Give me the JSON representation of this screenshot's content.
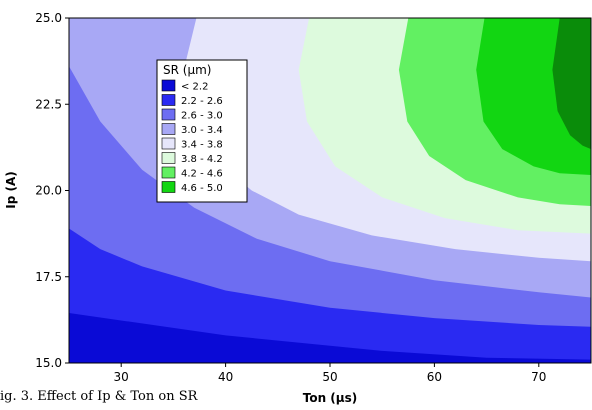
{
  "caption": "ig. 3.    Effect of Ip & Ton on SR",
  "chart_data": {
    "type": "contour",
    "xlabel": "Ton (µs)",
    "ylabel": "Ip (A)",
    "xlim": [
      25,
      75
    ],
    "ylim": [
      15,
      25
    ],
    "xticks": [
      "30",
      "40",
      "50",
      "60",
      "70"
    ],
    "yticks": [
      "15.0",
      "17.5",
      "20.0",
      "22.5",
      "25.0"
    ],
    "z_variable": "SR",
    "legend": {
      "title": "SR (µm)",
      "placement": "upper-left inside plot",
      "entries": [
        {
          "label": "< 2.2",
          "color": "#0a0ad6"
        },
        {
          "label": "2.2 - 2.6",
          "color": "#2a2af2"
        },
        {
          "label": "2.6 - 3.0",
          "color": "#6d6df2"
        },
        {
          "label": "3.0 - 3.4",
          "color": "#a8a8f5"
        },
        {
          "label": "3.4 - 3.8",
          "color": "#e6e6fb"
        },
        {
          "label": "3.8 - 4.2",
          "color": "#ddfadd"
        },
        {
          "label": "4.2 - 4.6",
          "color": "#62f062"
        },
        {
          "label": "4.6 - 5.0",
          "color": "#12d612"
        }
      ],
      "extra_band_color": "#0a8c0a"
    },
    "boundaries": [
      {
        "level": 2.2,
        "points": [
          [
            25,
            16.45
          ],
          [
            40,
            15.8
          ],
          [
            55,
            15.35
          ],
          [
            65,
            15.15
          ],
          [
            75,
            15.1
          ]
        ]
      },
      {
        "level": 2.6,
        "points": [
          [
            25,
            18.9
          ],
          [
            28,
            18.3
          ],
          [
            32,
            17.8
          ],
          [
            40,
            17.1
          ],
          [
            50,
            16.6
          ],
          [
            60,
            16.3
          ],
          [
            70,
            16.1
          ],
          [
            75,
            16.05
          ]
        ]
      },
      {
        "level": 3.0,
        "points": [
          [
            25,
            23.6
          ],
          [
            28,
            22.0
          ],
          [
            32,
            20.6
          ],
          [
            37,
            19.5
          ],
          [
            43,
            18.6
          ],
          [
            50,
            17.95
          ],
          [
            60,
            17.4
          ],
          [
            70,
            17.05
          ],
          [
            75,
            16.9
          ]
        ]
      },
      {
        "level": 3.4,
        "points": [
          [
            37.2,
            25.0
          ],
          [
            36.0,
            23.5
          ],
          [
            36.8,
            22.0
          ],
          [
            39.0,
            20.9
          ],
          [
            42.5,
            20.0
          ],
          [
            47.0,
            19.3
          ],
          [
            54.0,
            18.7
          ],
          [
            62.0,
            18.3
          ],
          [
            70.0,
            18.05
          ],
          [
            75.0,
            17.95
          ]
        ]
      },
      {
        "level": 3.8,
        "points": [
          [
            48.0,
            25.0
          ],
          [
            47.0,
            23.5
          ],
          [
            47.8,
            22.0
          ],
          [
            50.5,
            20.7
          ],
          [
            55.0,
            19.8
          ],
          [
            61.0,
            19.2
          ],
          [
            68.0,
            18.85
          ],
          [
            75.0,
            18.75
          ]
        ]
      },
      {
        "level": 4.2,
        "points": [
          [
            57.5,
            25.0
          ],
          [
            56.6,
            23.5
          ],
          [
            57.4,
            22.0
          ],
          [
            59.5,
            21.0
          ],
          [
            63.0,
            20.3
          ],
          [
            68.0,
            19.8
          ],
          [
            72.0,
            19.6
          ],
          [
            75.0,
            19.55
          ]
        ]
      },
      {
        "level": 4.6,
        "points": [
          [
            64.8,
            25.0
          ],
          [
            64.0,
            23.5
          ],
          [
            64.7,
            22.0
          ],
          [
            66.5,
            21.2
          ],
          [
            69.5,
            20.7
          ],
          [
            72.0,
            20.5
          ],
          [
            75.0,
            20.45
          ]
        ]
      },
      {
        "level": 5.0,
        "points": [
          [
            72.0,
            25.0
          ],
          [
            71.3,
            23.5
          ],
          [
            71.8,
            22.3
          ],
          [
            73.0,
            21.6
          ],
          [
            74.2,
            21.3
          ],
          [
            75.0,
            21.2
          ]
        ]
      }
    ],
    "band_colors": [
      "#0a0ad6",
      "#2a2af2",
      "#6d6df2",
      "#a8a8f5",
      "#e6e6fb",
      "#ddfadd",
      "#62f062",
      "#12d612",
      "#0a8c0a"
    ]
  }
}
